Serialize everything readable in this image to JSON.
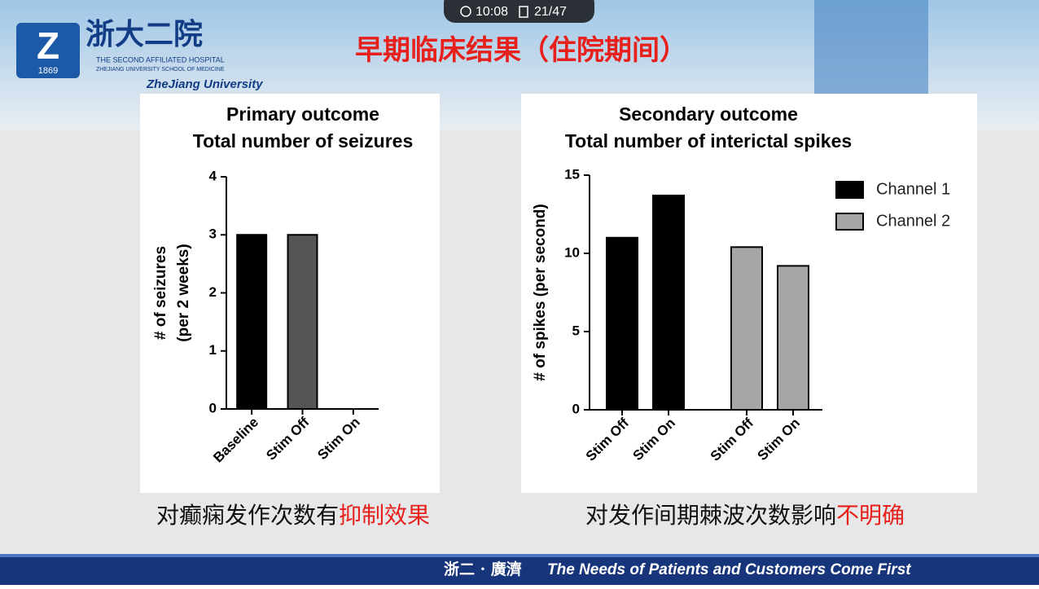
{
  "status_bar": {
    "time": "10:08",
    "page": "21/47"
  },
  "header": {
    "title": "早期临床结果（住院期间）",
    "logo_name": "浙大二院",
    "logo_year": "1869",
    "logo_sub": "THE SECOND AFFILIATED HOSPITAL",
    "logo_sub2": "ZHEJIANG UNIVERSITY SCHOOL OF MEDICINE",
    "university": "ZheJiang University"
  },
  "chart_data": [
    {
      "type": "bar",
      "title": "Primary outcome",
      "subtitle": "Total number of seizures",
      "ylabel": [
        "# of seizures",
        "(per 2 weeks)"
      ],
      "categories": [
        "Baseline",
        "Stim Off",
        "Stim On"
      ],
      "values": [
        3,
        3,
        0
      ],
      "colors": [
        "#000000",
        "#555555",
        "#555555"
      ],
      "ylim": [
        0,
        4
      ],
      "yticks": [
        0,
        1,
        2,
        3,
        4
      ]
    },
    {
      "type": "grouped_bar",
      "title": "Secondary outcome",
      "subtitle": "Total number of interictal spikes",
      "ylabel": "# of spikes (per second)",
      "categories": [
        "Stim Off",
        "Stim On"
      ],
      "series": [
        {
          "name": "Channel 1",
          "color": "#000000",
          "values": [
            11,
            13.7
          ]
        },
        {
          "name": "Channel 2",
          "color": "#a6a6a6",
          "values": [
            10.4,
            9.2
          ]
        }
      ],
      "ylim": [
        0,
        15
      ],
      "yticks": [
        0,
        5,
        10,
        15
      ],
      "legend": "top-right"
    }
  ],
  "captions": [
    {
      "text": "对癫痫发作次数有",
      "highlight": "抑制效果"
    },
    {
      "text": "对发作间期棘波次数影响",
      "highlight": "不明确"
    }
  ],
  "footer": {
    "motto_cn": "浙二 · 廣濟",
    "motto_en": "The Needs of Patients and Customers Come First"
  }
}
